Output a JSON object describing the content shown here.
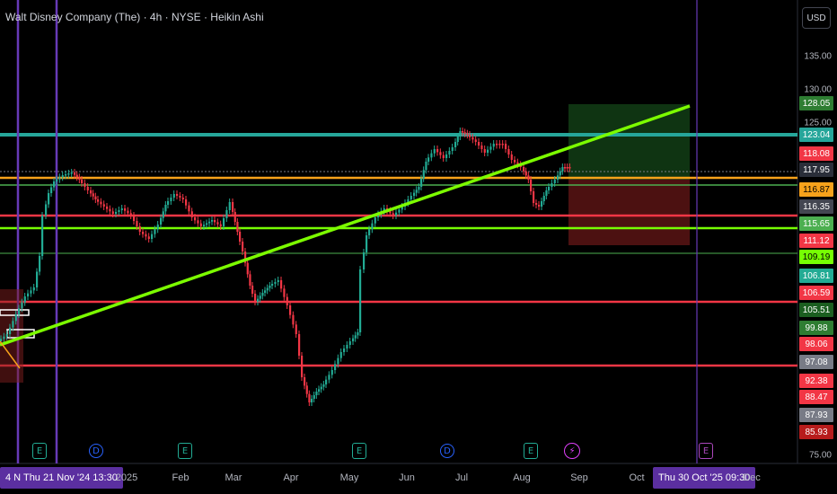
{
  "header": {
    "title": "Walt Disney Company (The) · 4h · NYSE · Heikin Ashi",
    "currency": "USD"
  },
  "price_axis": {
    "ticks": [
      "135.00",
      "130.00",
      "125.00",
      "75.00"
    ],
    "badges": [
      {
        "text": "128.05",
        "bg": "#2e7d32",
        "fg": "#ffffff"
      },
      {
        "text": "123.04",
        "bg": "#26a69a",
        "fg": "#ffffff"
      },
      {
        "text": "118.08",
        "bg": "#f23645",
        "fg": "#ffffff"
      },
      {
        "text": "117.95",
        "bg": "#2a2e39",
        "fg": "#ffffff"
      },
      {
        "text": "116.87",
        "bg": "#f7a21b",
        "fg": "#000000"
      },
      {
        "text": "116.35",
        "bg": "#434651",
        "fg": "#ffffff"
      },
      {
        "text": "115.65",
        "bg": "#4caf50",
        "fg": "#ffffff"
      },
      {
        "text": "111.12",
        "bg": "#f23645",
        "fg": "#ffffff"
      },
      {
        "text": "109.19",
        "bg": "#76ff03",
        "fg": "#000000"
      },
      {
        "text": "106.81",
        "bg": "#22ab94",
        "fg": "#ffffff"
      },
      {
        "text": "106.59",
        "bg": "#f23645",
        "fg": "#ffffff"
      },
      {
        "text": "105.51",
        "bg": "#1b5e20",
        "fg": "#ffffff"
      },
      {
        "text": "99.88",
        "bg": "#2e7d32",
        "fg": "#ffffff"
      },
      {
        "text": "98.06",
        "bg": "#f23645",
        "fg": "#ffffff"
      },
      {
        "text": "97.08",
        "bg": "#787b86",
        "fg": "#ffffff"
      },
      {
        "text": "92.38",
        "bg": "#f23645",
        "fg": "#ffffff"
      },
      {
        "text": "88.47",
        "bg": "#f23645",
        "fg": "#ffffff"
      },
      {
        "text": "87.93",
        "bg": "#787b86",
        "fg": "#ffffff"
      },
      {
        "text": "85.93",
        "bg": "#b71c1c",
        "fg": "#ffffff"
      }
    ]
  },
  "time_axis": {
    "left_badge": "4 N  Thu 21 Nov '24   13:30",
    "right_badge": "Thu 30 Oct '25   09:30",
    "labels": [
      "2025",
      "Feb",
      "Mar",
      "Apr",
      "May",
      "Jun",
      "Jul",
      "Aug",
      "Sep",
      "Oct",
      "Dec"
    ]
  },
  "events": [
    {
      "type": "E",
      "kind": "earnings"
    },
    {
      "type": "D",
      "kind": "dividend"
    },
    {
      "type": "E",
      "kind": "earnings"
    },
    {
      "type": "E",
      "kind": "earnings"
    },
    {
      "type": "D",
      "kind": "dividend"
    },
    {
      "type": "E",
      "kind": "earnings"
    },
    {
      "type": "⚡",
      "kind": "split"
    },
    {
      "type": "E",
      "kind": "earnings-future"
    }
  ],
  "colors": {
    "background": "#000000",
    "up": "#22ab94",
    "down": "#f23645",
    "trendline": "#7cfc00",
    "teal_level": "#26a69a",
    "orange_level": "#f7a21b",
    "red_level": "#f23645",
    "vline": "#673ab7"
  }
}
